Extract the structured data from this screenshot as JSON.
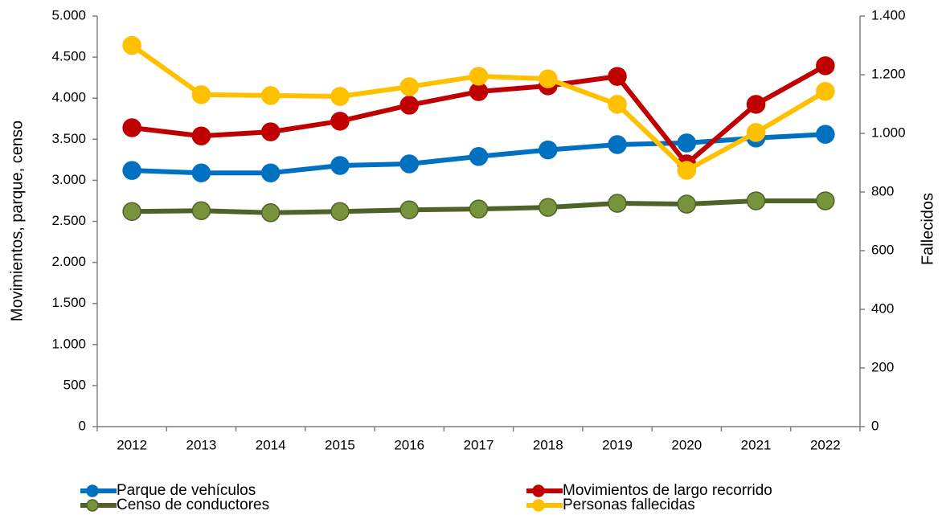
{
  "chart_data": {
    "type": "line",
    "y_label": "Movimientos, parque, censo",
    "y2_label": "Fallecidos",
    "categories": [
      "2012",
      "2013",
      "2014",
      "2015",
      "2016",
      "2017",
      "2018",
      "2019",
      "2020",
      "2021",
      "2022"
    ],
    "series": [
      {
        "name": "Parque de vehículos",
        "color": "#0070c0",
        "marker_color": "#0070c0",
        "values": [
          3120,
          3090,
          3090,
          3180,
          3200,
          3290,
          3370,
          3435,
          3455,
          3515,
          3560
        ]
      },
      {
        "name": "Movimientos de largo recorrido",
        "color": "#c00000",
        "marker_color": "#c00000",
        "values": [
          3640,
          3540,
          3590,
          3720,
          3915,
          4080,
          4150,
          4265,
          3200,
          3925,
          4395
        ]
      },
      {
        "name": "Censo de conductores",
        "color": "#4f6228",
        "marker_color": "#77933c",
        "values": [
          2620,
          2630,
          2605,
          2620,
          2640,
          2650,
          2670,
          2720,
          2710,
          2750,
          2750
        ]
      },
      {
        "name": "Personas fallecidas",
        "color": "#ffc000",
        "marker_color": "#ffc000",
        "axis": "y2",
        "values": [
          1300,
          1132,
          1129,
          1126,
          1159,
          1195,
          1186,
          1099,
          874,
          1003,
          1143
        ]
      }
    ],
    "ylim": [
      0,
      5000
    ],
    "yticks": [
      0,
      500,
      {
        "value": 1000,
        "label": "1.000"
      },
      {
        "value": 1500,
        "label": "1.500"
      },
      {
        "value": 2000,
        "label": "2.000"
      },
      {
        "value": 2500,
        "label": "2.500"
      },
      {
        "value": 3000,
        "label": "3.000"
      },
      {
        "value": 3500,
        "label": "3.500"
      },
      {
        "value": 4000,
        "label": "4.000"
      },
      {
        "value": 4500,
        "label": "4.500"
      },
      {
        "value": 5000,
        "label": "5.000"
      }
    ],
    "y2lim": [
      0,
      1400
    ],
    "y2ticks": [
      0,
      200,
      400,
      600,
      800,
      {
        "value": 1000,
        "label": "1.000"
      },
      {
        "value": 1200,
        "label": "1.200"
      },
      {
        "value": 1400,
        "label": "1.400"
      }
    ],
    "grid": false,
    "legend": "bottom"
  }
}
